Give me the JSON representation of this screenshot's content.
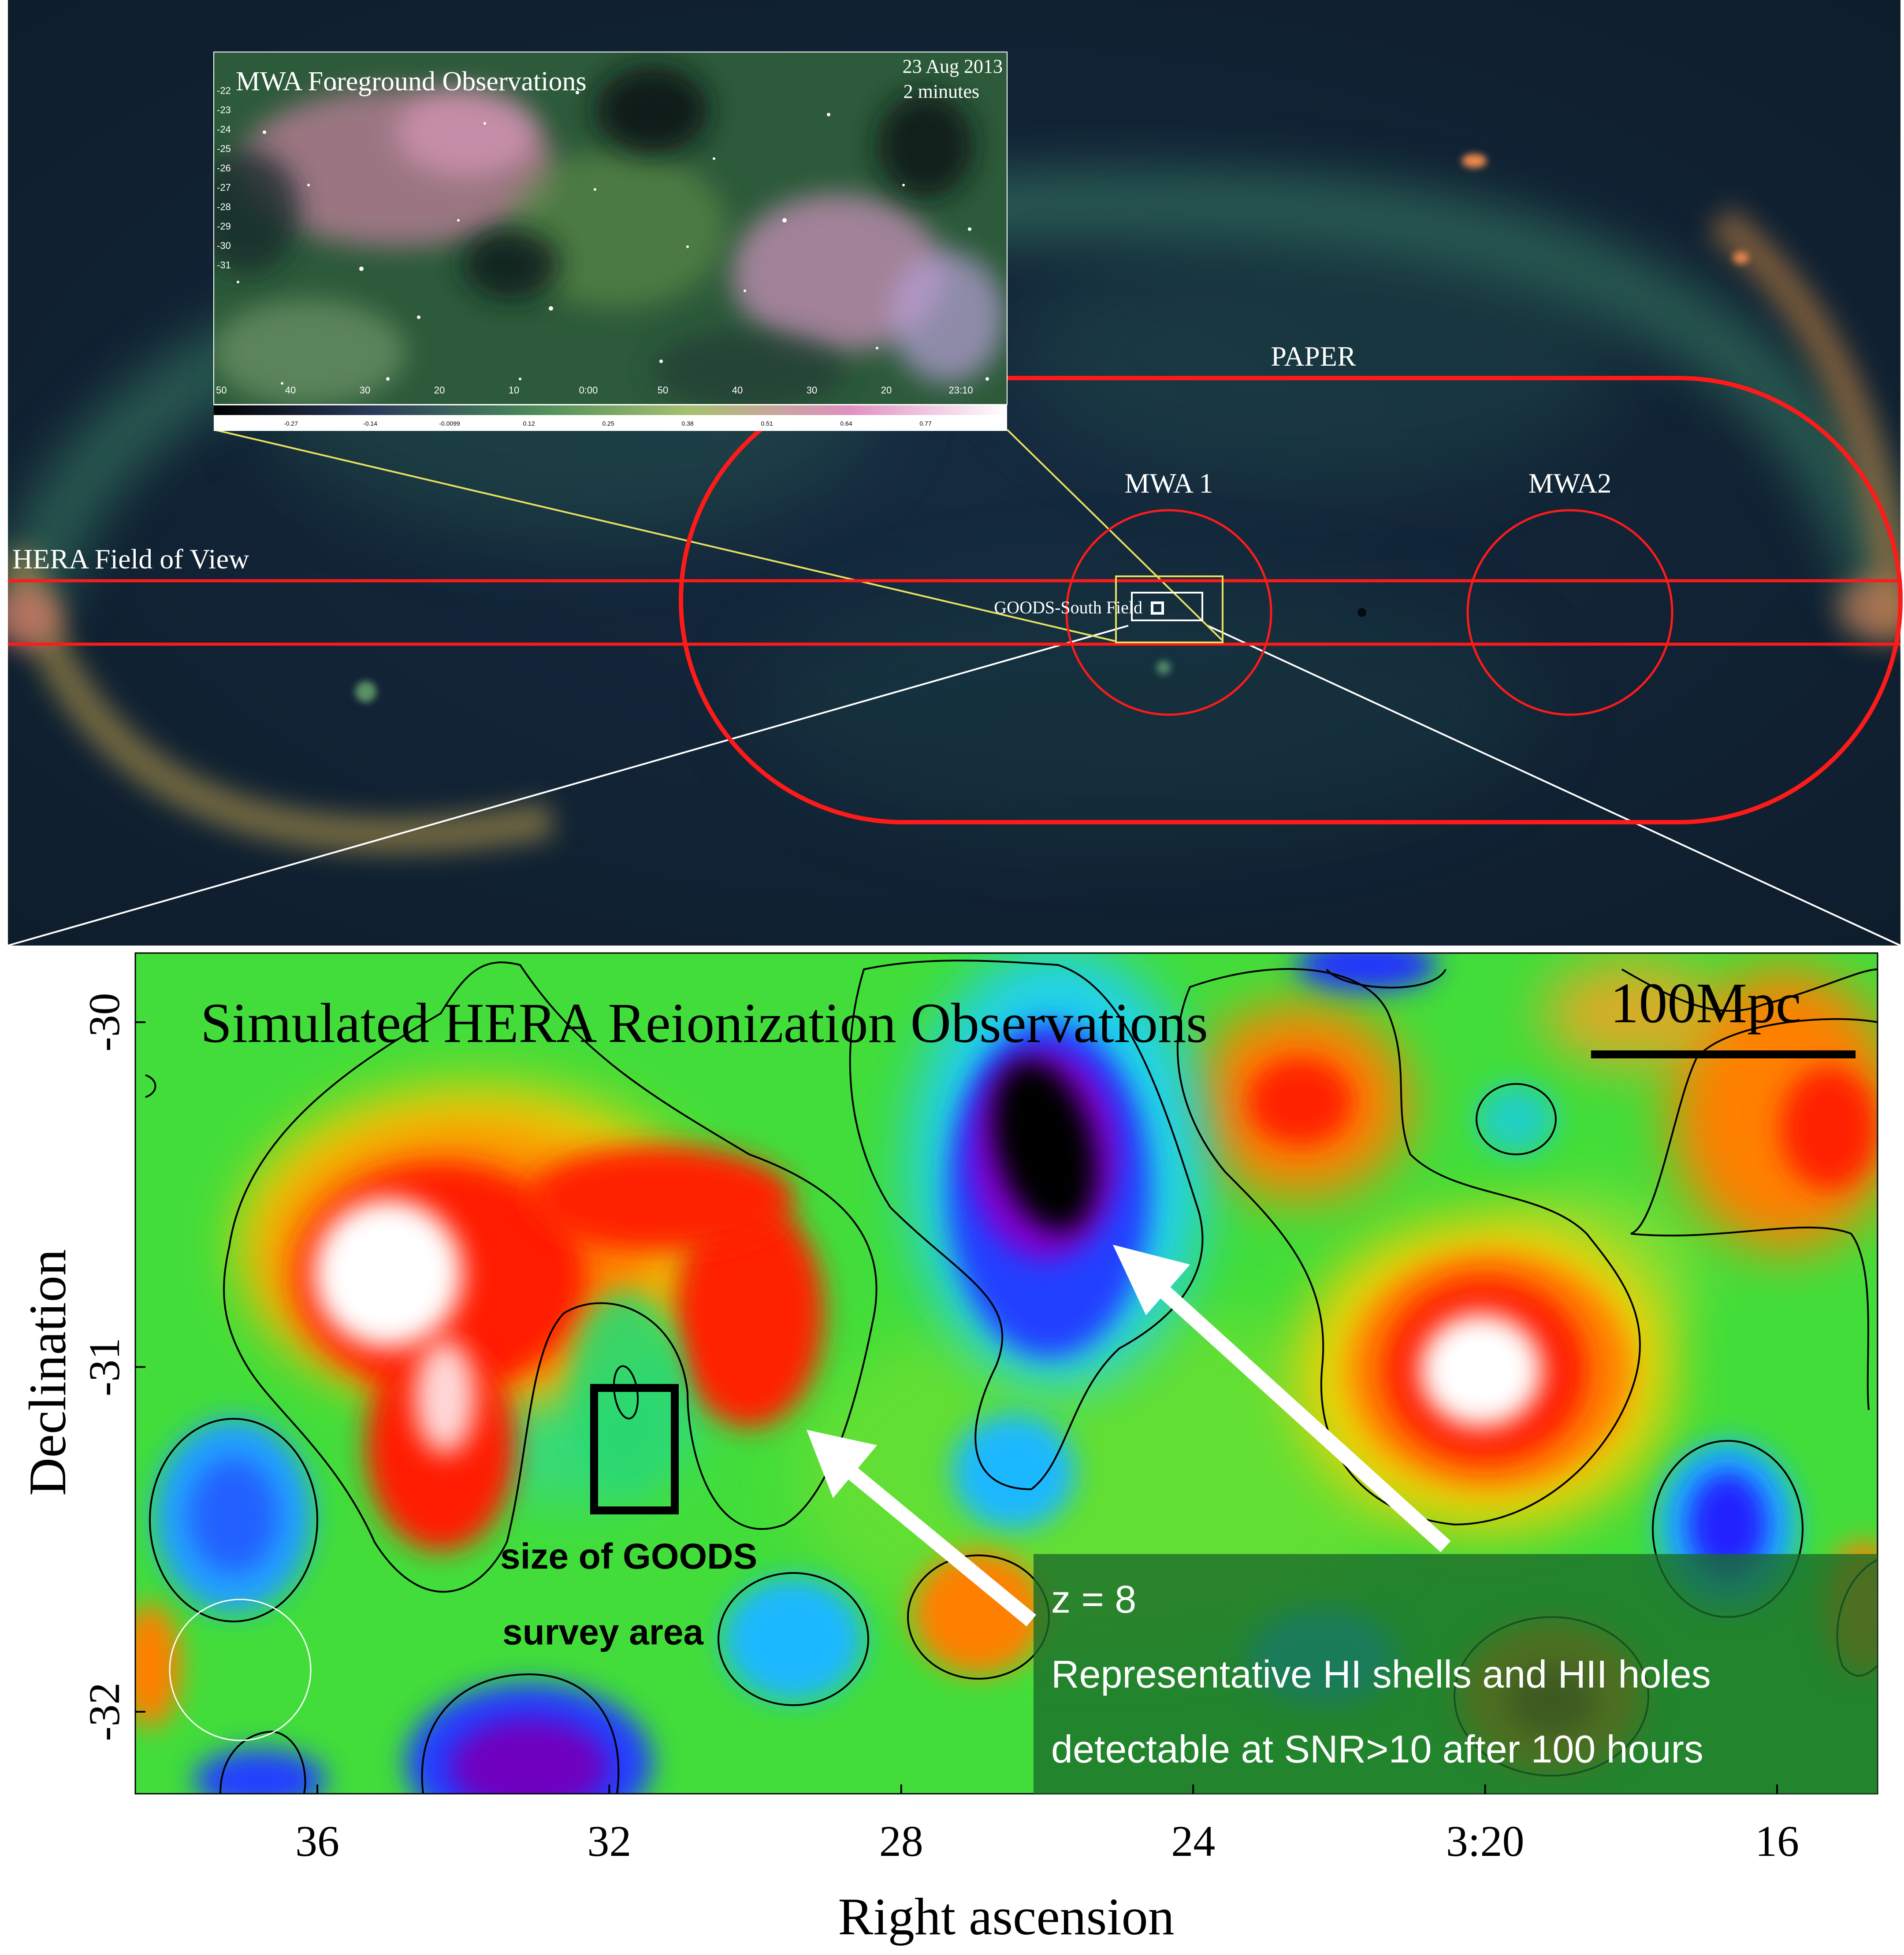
{
  "sky_panel": {
    "survey_labels": {
      "paper": "PAPER",
      "mwa1": "MWA 1",
      "mwa2": "MWA2",
      "hera": "HERA Field of View",
      "goods": "GOODS-South Field"
    },
    "inset": {
      "title": "MWA Foreground Observations",
      "date": "23 Aug 2013",
      "duration": "2 minutes",
      "dec_ticks": [
        "-22",
        "-23",
        "-24",
        "-25",
        "-26",
        "-27",
        "-28",
        "-29",
        "-30",
        "-31"
      ],
      "ra_ticks": [
        "50",
        "40",
        "30",
        "20",
        "10",
        "0:00",
        "50",
        "40",
        "30",
        "20",
        "23:10"
      ],
      "colorbar_ticks": [
        "-0.27",
        "-0.14",
        "-0.0099",
        "0.12",
        "0.25",
        "0.38",
        "0.51",
        "0.64",
        "0.77"
      ]
    }
  },
  "sim_panel": {
    "title": "Simulated HERA Reionization Observations",
    "scale_label": "100Mpc",
    "goods_label_line1": "size of GOODS",
    "goods_label_line2": "survey area",
    "info_line1": "z = 8",
    "info_line2": "Representative HI shells and HII holes",
    "info_line3": "detectable at SNR>10 after 100 hours",
    "xlabel": "Right ascension",
    "ylabel": "Declination",
    "x_ticks": [
      "36",
      "32",
      "28",
      "24",
      "3:20",
      "16"
    ],
    "y_ticks": [
      "-30",
      "-31",
      "-32"
    ]
  },
  "colors": {
    "survey_red": "#ff1a1a",
    "connector_yellow": "#e8e060",
    "sky_bg": "#14263a"
  }
}
